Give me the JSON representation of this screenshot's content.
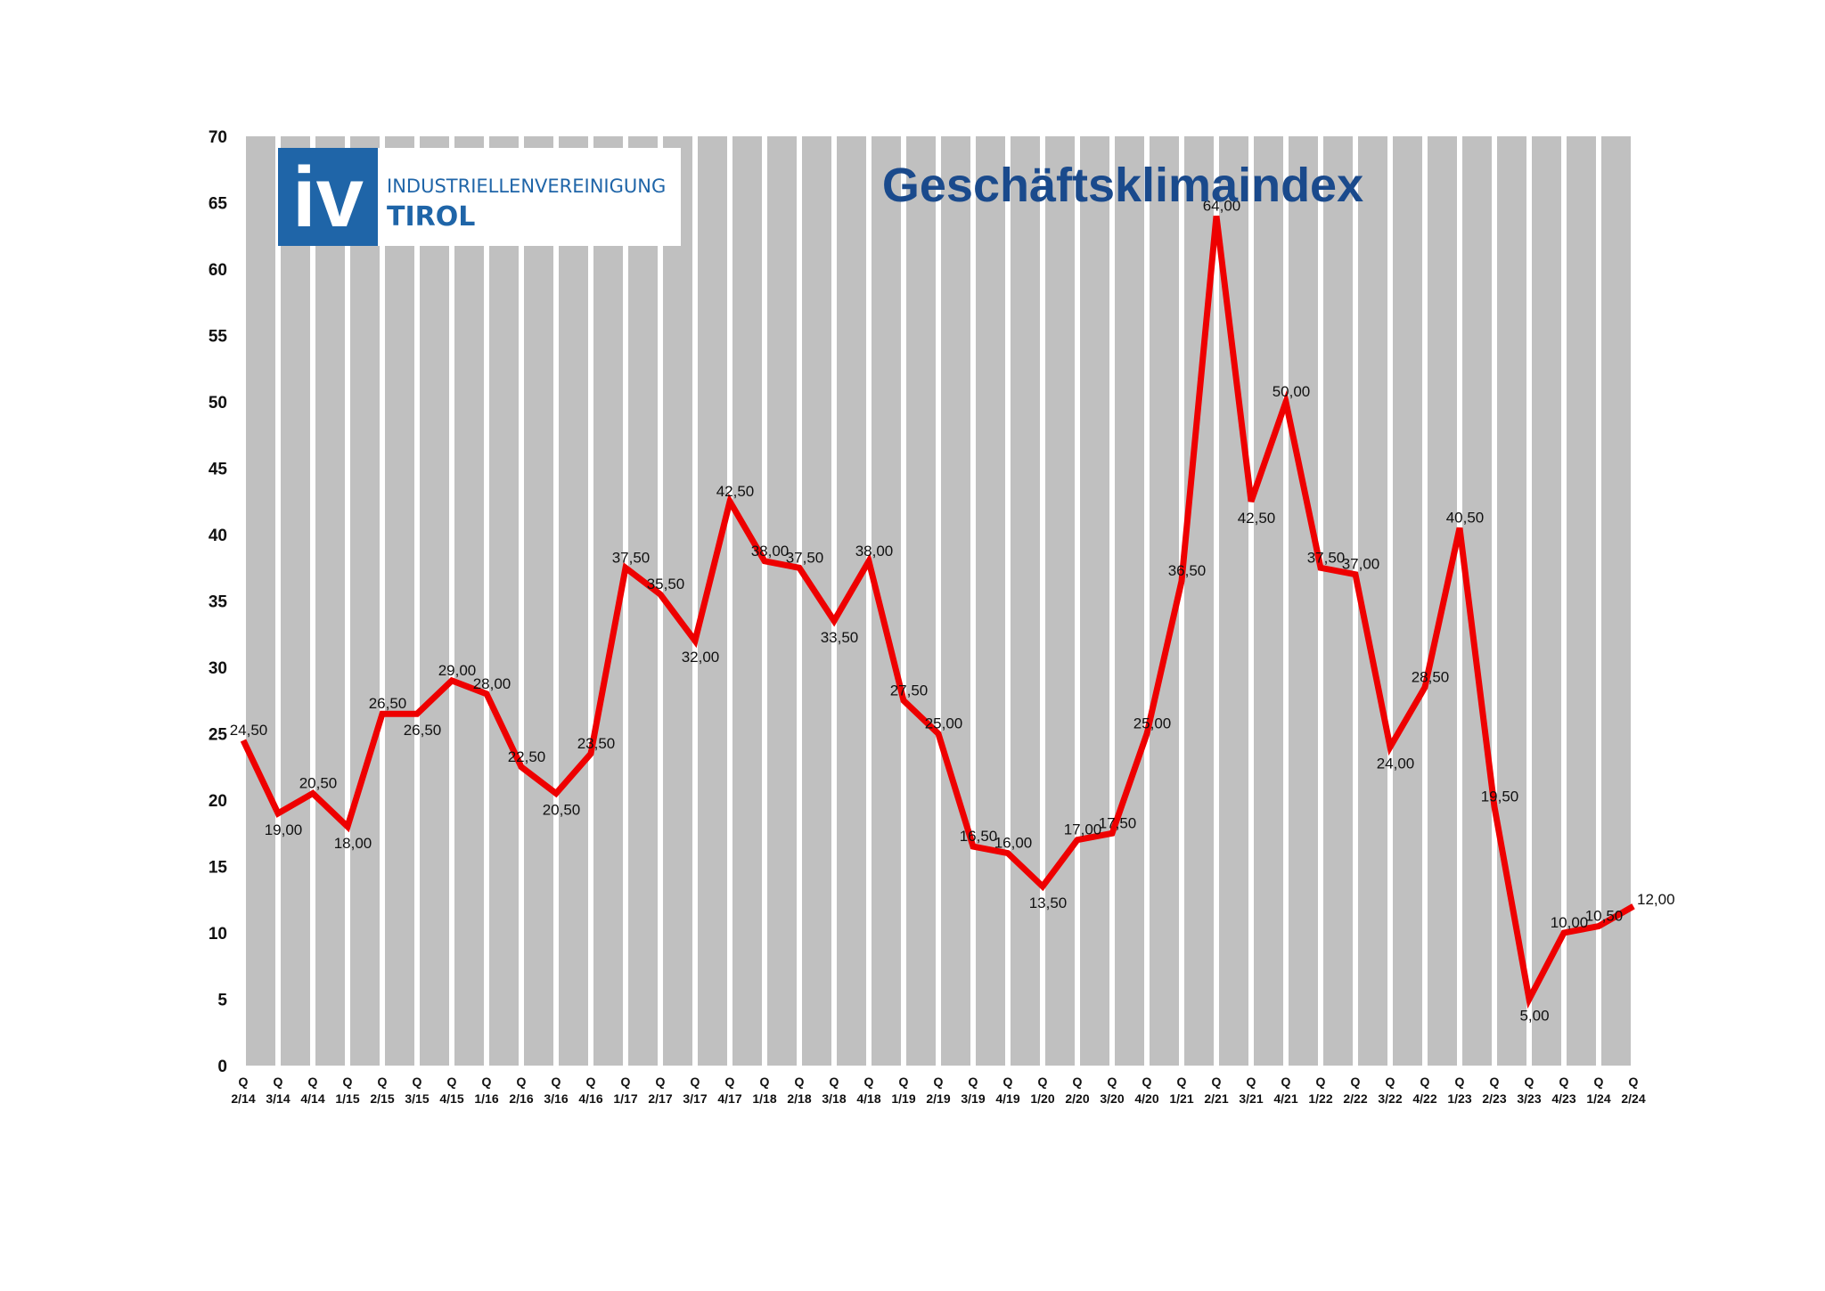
{
  "logo": {
    "mark": "iv",
    "line1": "INDUSTRIELLENVEREINIGUNG",
    "line2": "TIROL"
  },
  "colors": {
    "line": "#ee0000",
    "plot_bg": "#c0c0c0",
    "stripe": "#ffffff",
    "title": "#1a4a8c",
    "logo_blue": "#1f65a8"
  },
  "chart_data": {
    "type": "line",
    "title": "Geschäftsklimaindex",
    "xlabel": "",
    "ylabel": "",
    "ylim": [
      0,
      70
    ],
    "yticks": [
      0,
      5,
      10,
      15,
      20,
      25,
      30,
      35,
      40,
      45,
      50,
      55,
      60,
      65,
      70
    ],
    "grid": false,
    "legend": "none",
    "categories": [
      "Q 2/14",
      "Q 3/14",
      "Q 4/14",
      "Q 1/15",
      "Q 2/15",
      "Q 3/15",
      "Q 4/15",
      "Q 1/16",
      "Q 2/16",
      "Q 3/16",
      "Q 4/16",
      "Q 1/17",
      "Q 2/17",
      "Q 3/17",
      "Q 4/17",
      "Q 1/18",
      "Q 2/18",
      "Q 3/18",
      "Q 4/18",
      "Q 1/19",
      "Q 2/19",
      "Q 3/19",
      "Q 4/19",
      "Q 1/20",
      "Q 2/20",
      "Q 3/20",
      "Q 4/20",
      "Q 1/21",
      "Q 2/21",
      "Q 3/21",
      "Q 4/21",
      "Q 1/22",
      "Q 2/22",
      "Q 3/22",
      "Q 4/22",
      "Q 1/23",
      "Q 2/23",
      "Q 3/23",
      "Q 4/23",
      "Q 1/24",
      "Q 2/24"
    ],
    "values": [
      24.5,
      19,
      20.5,
      18,
      26.5,
      26.5,
      29,
      28,
      22.5,
      20.5,
      23.5,
      37.5,
      35.5,
      32,
      42.5,
      38,
      37.5,
      33.5,
      38,
      27.5,
      25,
      16.5,
      16,
      13.5,
      17,
      17.5,
      25,
      36.5,
      64,
      42.5,
      50,
      37.5,
      37,
      24,
      28.5,
      40.5,
      19.5,
      5,
      10,
      10.5,
      12
    ],
    "labels": [
      "24,50",
      "19,00",
      "20,50",
      "18,00",
      "26,50",
      "26,50",
      "29,00",
      "28,00",
      "22,50",
      "20,50",
      "23,50",
      "37,50",
      "35,50",
      "32,00",
      "42,50",
      "38,00",
      "37,50",
      "33,50",
      "38,00",
      "27,50",
      "25,00",
      "16,50",
      "16,00",
      "13,50",
      "17,00",
      "17,50",
      "25,00",
      "36,50",
      "64,00",
      "42,50",
      "50,00",
      "37,50",
      "37,00",
      "24,00",
      "28,50",
      "40,50",
      "19,50",
      "5,00",
      "10,00",
      "10,50",
      "12,00"
    ]
  }
}
